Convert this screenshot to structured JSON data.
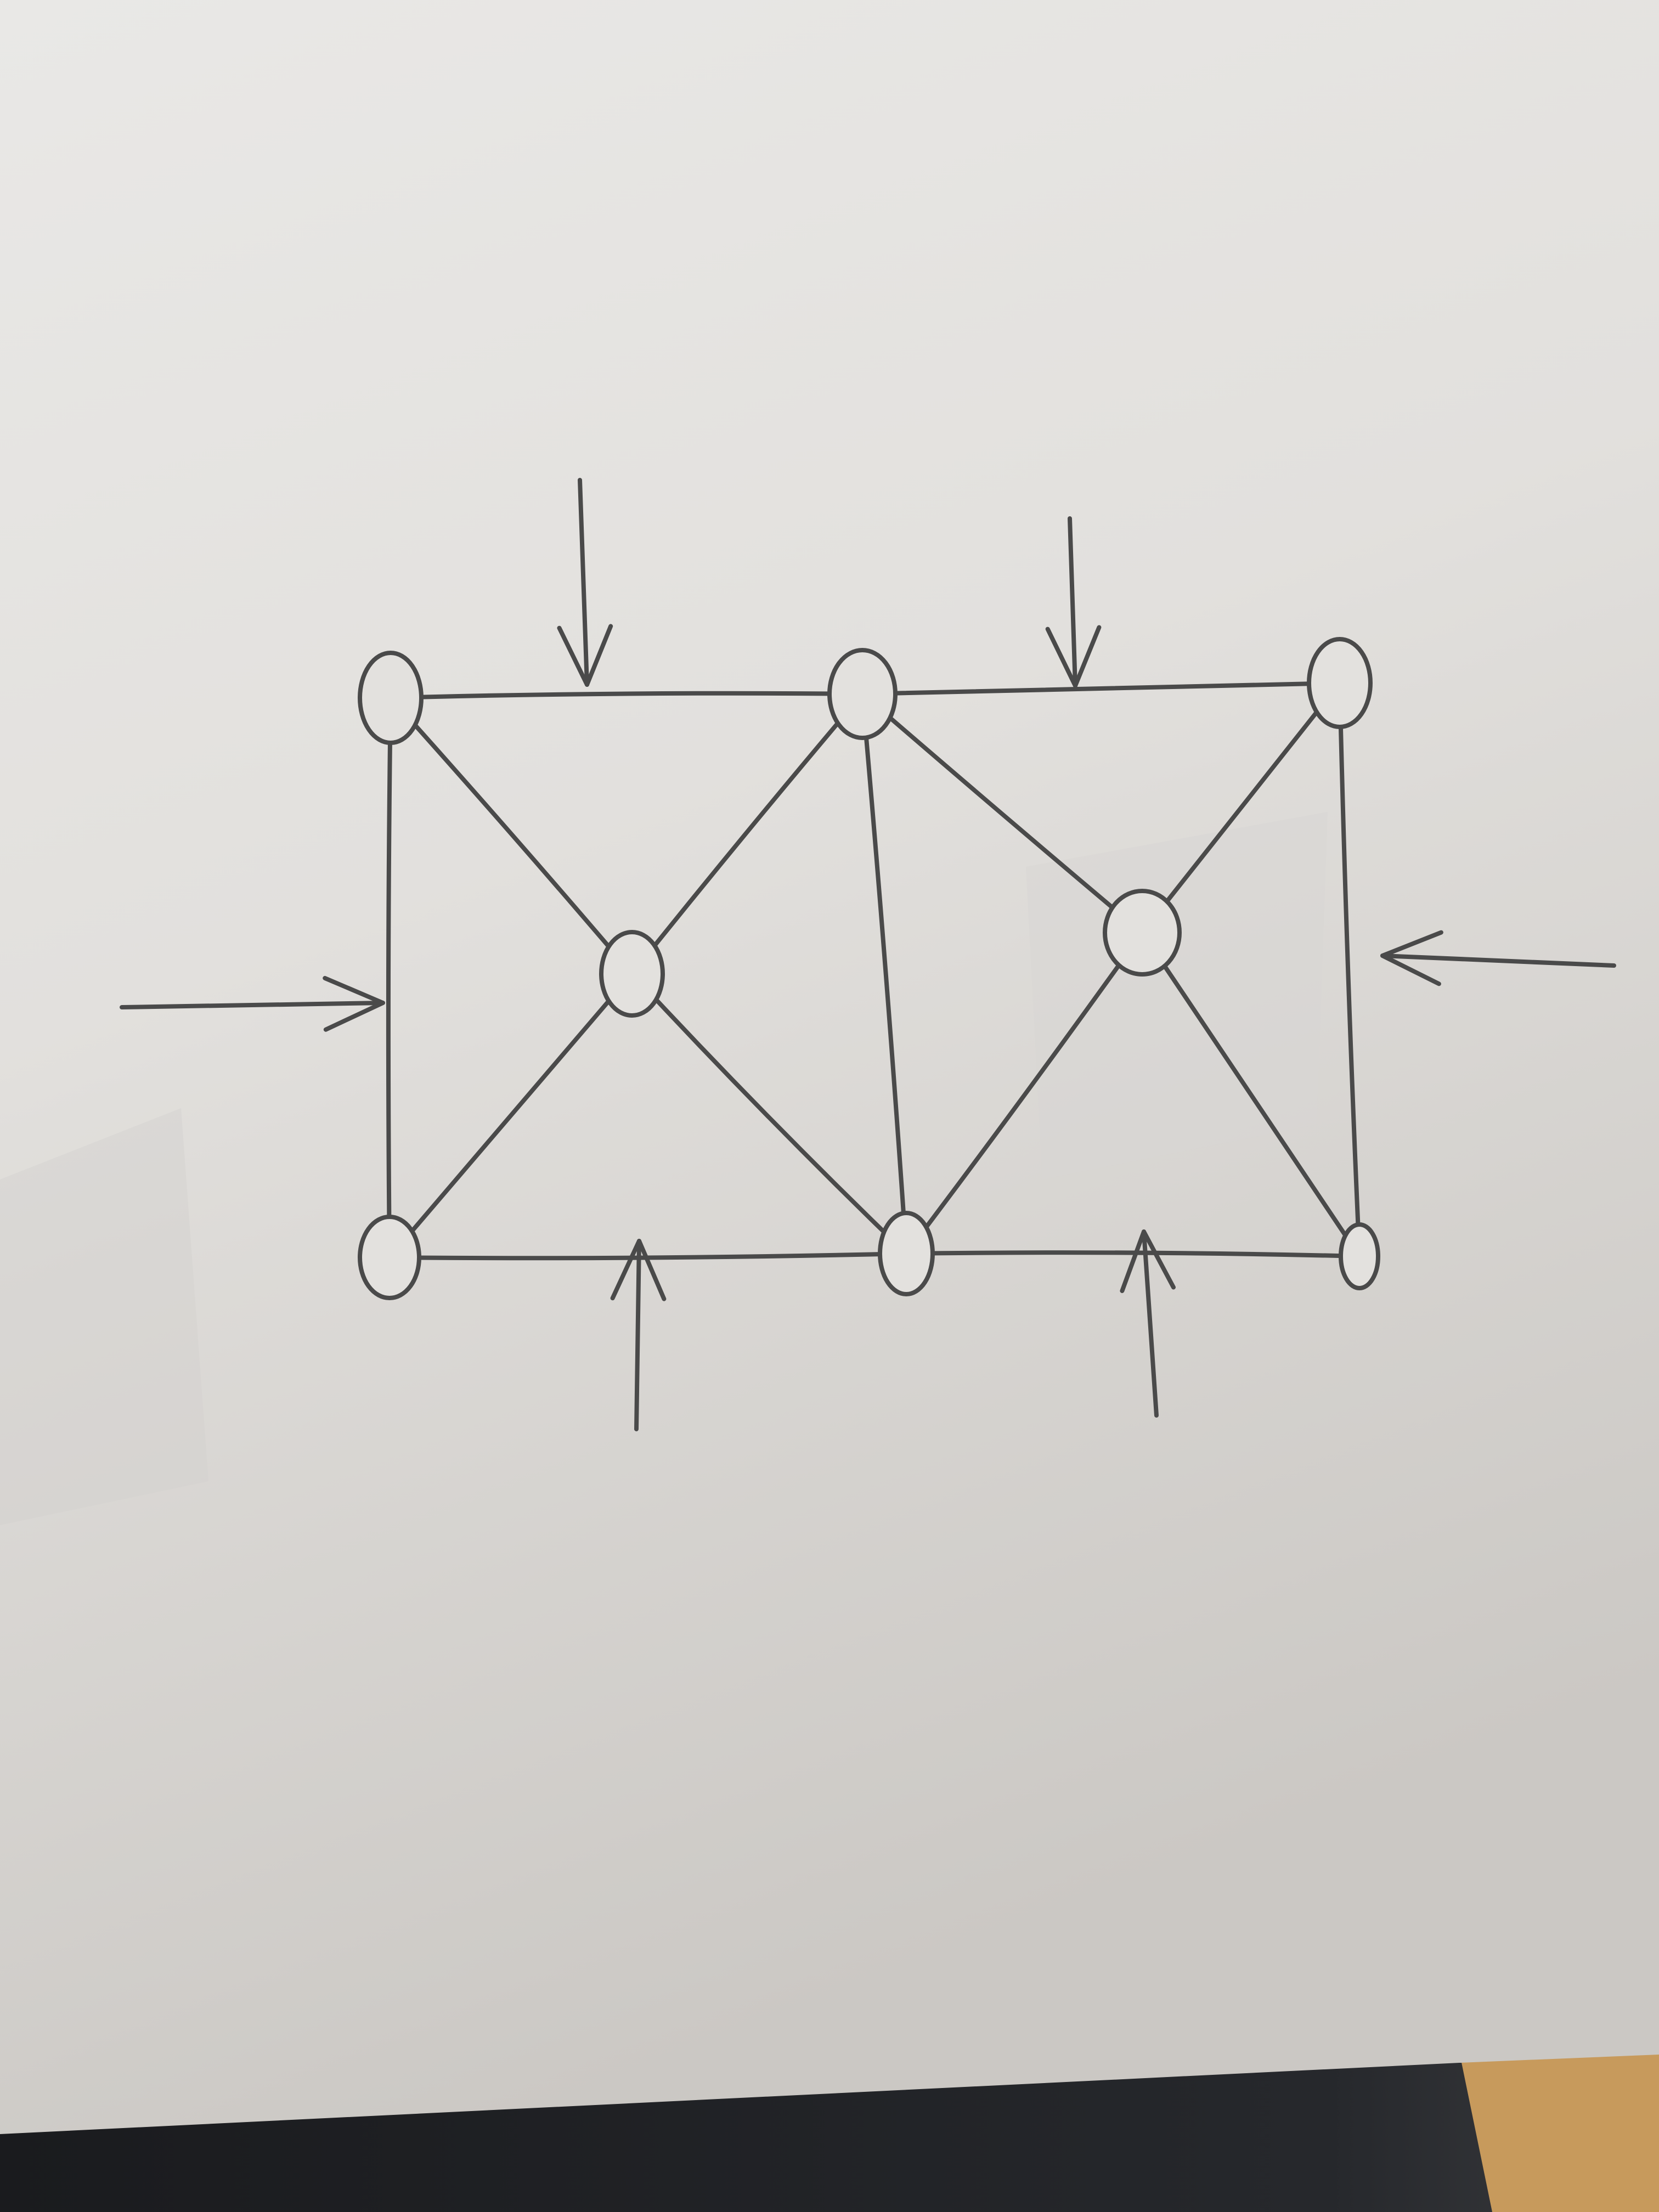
{
  "diagram": {
    "type": "hand-drawn-truss",
    "colors": {
      "paper": "#e6e4e0",
      "paper_shadow": "#cfccc7",
      "pencil": "#4a4a4a",
      "background_dark": "#1e1f22",
      "background_wood": "#c79a5c"
    },
    "nodes": [
      {
        "id": "top-left"
      },
      {
        "id": "top-mid"
      },
      {
        "id": "top-right"
      },
      {
        "id": "center-left"
      },
      {
        "id": "center-right"
      },
      {
        "id": "bottom-left"
      },
      {
        "id": "bottom-mid"
      },
      {
        "id": "bottom-right"
      }
    ],
    "members": [
      {
        "from": "top-left",
        "to": "top-mid"
      },
      {
        "from": "top-mid",
        "to": "top-right"
      },
      {
        "from": "bottom-left",
        "to": "bottom-mid"
      },
      {
        "from": "bottom-mid",
        "to": "bottom-right"
      },
      {
        "from": "top-left",
        "to": "bottom-left"
      },
      {
        "from": "top-mid",
        "to": "bottom-mid"
      },
      {
        "from": "top-right",
        "to": "bottom-right"
      },
      {
        "from": "top-left",
        "to": "center-left"
      },
      {
        "from": "center-left",
        "to": "bottom-mid"
      },
      {
        "from": "bottom-left",
        "to": "center-left"
      },
      {
        "from": "center-left",
        "to": "top-mid"
      },
      {
        "from": "top-mid",
        "to": "center-right"
      },
      {
        "from": "center-right",
        "to": "bottom-right"
      },
      {
        "from": "bottom-mid",
        "to": "center-right"
      },
      {
        "from": "center-right",
        "to": "top-right"
      }
    ],
    "loads": [
      {
        "id": "load-top-left-span",
        "direction": "down"
      },
      {
        "id": "load-top-right-span",
        "direction": "down"
      },
      {
        "id": "load-left-side",
        "direction": "right"
      },
      {
        "id": "load-right-side",
        "direction": "left"
      },
      {
        "id": "load-bottom-left-span",
        "direction": "up"
      },
      {
        "id": "load-bottom-right-span",
        "direction": "up"
      }
    ]
  }
}
